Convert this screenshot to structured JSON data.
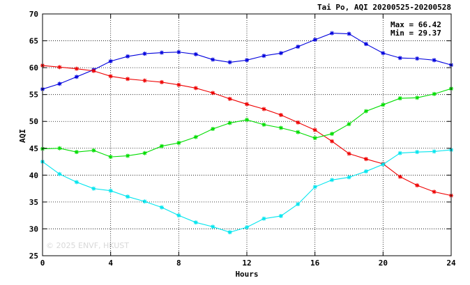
{
  "chart_data": {
    "type": "line",
    "title": "Tai Po, AQI 20200525-20200528",
    "xlabel": "Hours",
    "ylabel": "AQI",
    "xlim": [
      0,
      24
    ],
    "ylim": [
      25,
      70
    ],
    "x_ticks": [
      0,
      4,
      8,
      12,
      16,
      20,
      24
    ],
    "y_ticks": [
      25,
      30,
      35,
      40,
      45,
      50,
      55,
      60,
      65,
      70
    ],
    "grid": true,
    "stats": {
      "max": "Max = 66.42",
      "min": "Min = 29.37"
    },
    "watermark": "© 2025  ENVF, HKUST",
    "x": [
      0,
      1,
      2,
      3,
      4,
      5,
      6,
      7,
      8,
      9,
      10,
      11,
      12,
      13,
      14,
      15,
      16,
      17,
      18,
      19,
      20,
      21,
      22,
      23,
      24
    ],
    "series": [
      {
        "color": "#0000dd",
        "values": [
          56.0,
          57.0,
          58.3,
          59.6,
          61.2,
          62.1,
          62.6,
          62.8,
          62.9,
          62.5,
          61.5,
          61.0,
          61.4,
          62.2,
          62.7,
          63.9,
          65.2,
          66.42,
          66.3,
          64.4,
          62.7,
          61.8,
          61.7,
          61.4,
          60.5
        ]
      },
      {
        "color": "#ee0000",
        "values": [
          60.4,
          60.1,
          59.8,
          59.4,
          58.4,
          57.9,
          57.6,
          57.3,
          56.8,
          56.2,
          55.3,
          54.2,
          53.2,
          52.3,
          51.2,
          49.8,
          48.4,
          46.3,
          44.0,
          43.0,
          42.1,
          39.7,
          38.1,
          36.9,
          36.2
        ]
      },
      {
        "color": "#00dd00",
        "values": [
          44.9,
          45.0,
          44.3,
          44.6,
          43.4,
          43.6,
          44.1,
          45.4,
          46.0,
          47.1,
          48.6,
          49.7,
          50.3,
          49.4,
          48.8,
          48.0,
          46.9,
          47.7,
          49.5,
          51.9,
          53.1,
          54.3,
          54.4,
          55.1,
          56.1
        ]
      },
      {
        "color": "#00e5ee",
        "values": [
          42.5,
          40.2,
          38.7,
          37.5,
          37.1,
          36.0,
          35.1,
          34.0,
          32.5,
          31.2,
          30.4,
          29.37,
          30.3,
          31.9,
          32.4,
          34.6,
          37.8,
          39.1,
          39.6,
          40.7,
          42.0,
          44.1,
          44.3,
          44.4,
          44.7
        ]
      }
    ]
  }
}
